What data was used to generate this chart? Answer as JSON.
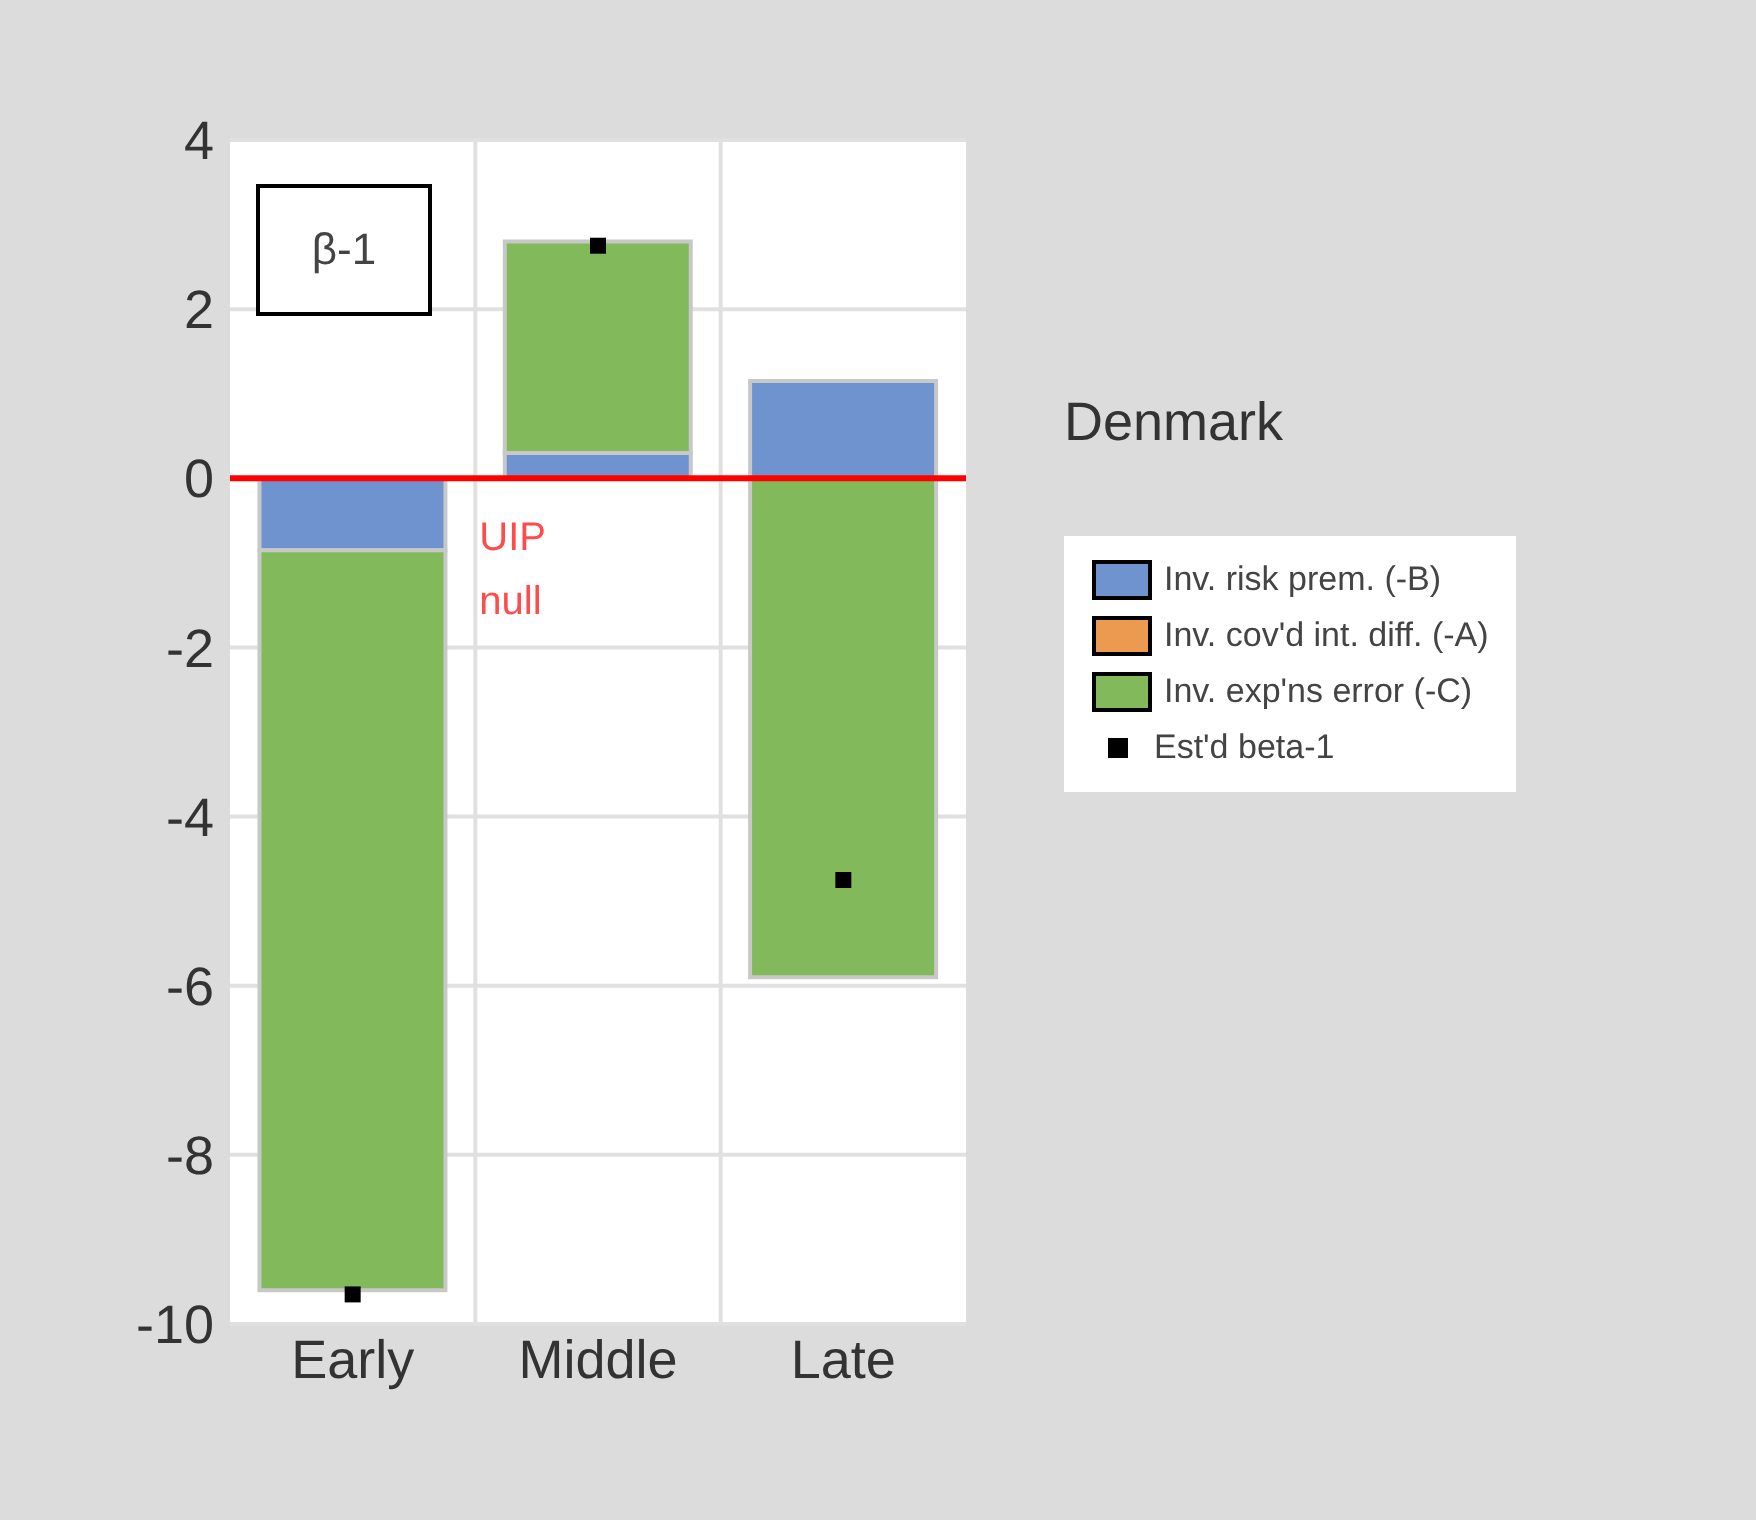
{
  "chart_data": {
    "type": "bar",
    "stacked": true,
    "title": "Denmark",
    "categories": [
      "Early",
      "Middle",
      "Late"
    ],
    "series": [
      {
        "name": "Inv. risk prem. (-B)",
        "color": "#6e93cf",
        "values": [
          -0.85,
          0.3,
          1.15
        ]
      },
      {
        "name": "Inv. cov'd int. diff. (-A)",
        "color": "#eb9a4f",
        "values": [
          0,
          0,
          0
        ]
      },
      {
        "name": "Inv. exp'ns error (-C)",
        "color": "#82b95b",
        "values": [
          -8.75,
          2.5,
          -5.9
        ]
      },
      {
        "name": "Est'd beta-1",
        "type": "scatter",
        "color": "#000000",
        "marker": "square",
        "values": [
          -9.65,
          2.75,
          -4.75
        ]
      }
    ],
    "ylim": [
      -10,
      4
    ],
    "yticks": [
      -10,
      -8,
      -6,
      -4,
      -2,
      0,
      2,
      4
    ],
    "grid": true,
    "legend": "right",
    "ref_lines": [
      {
        "axis": "y",
        "value": 0,
        "label": "UIP null",
        "color": "#ff0000"
      }
    ],
    "annotations": [
      "β-1"
    ]
  }
}
